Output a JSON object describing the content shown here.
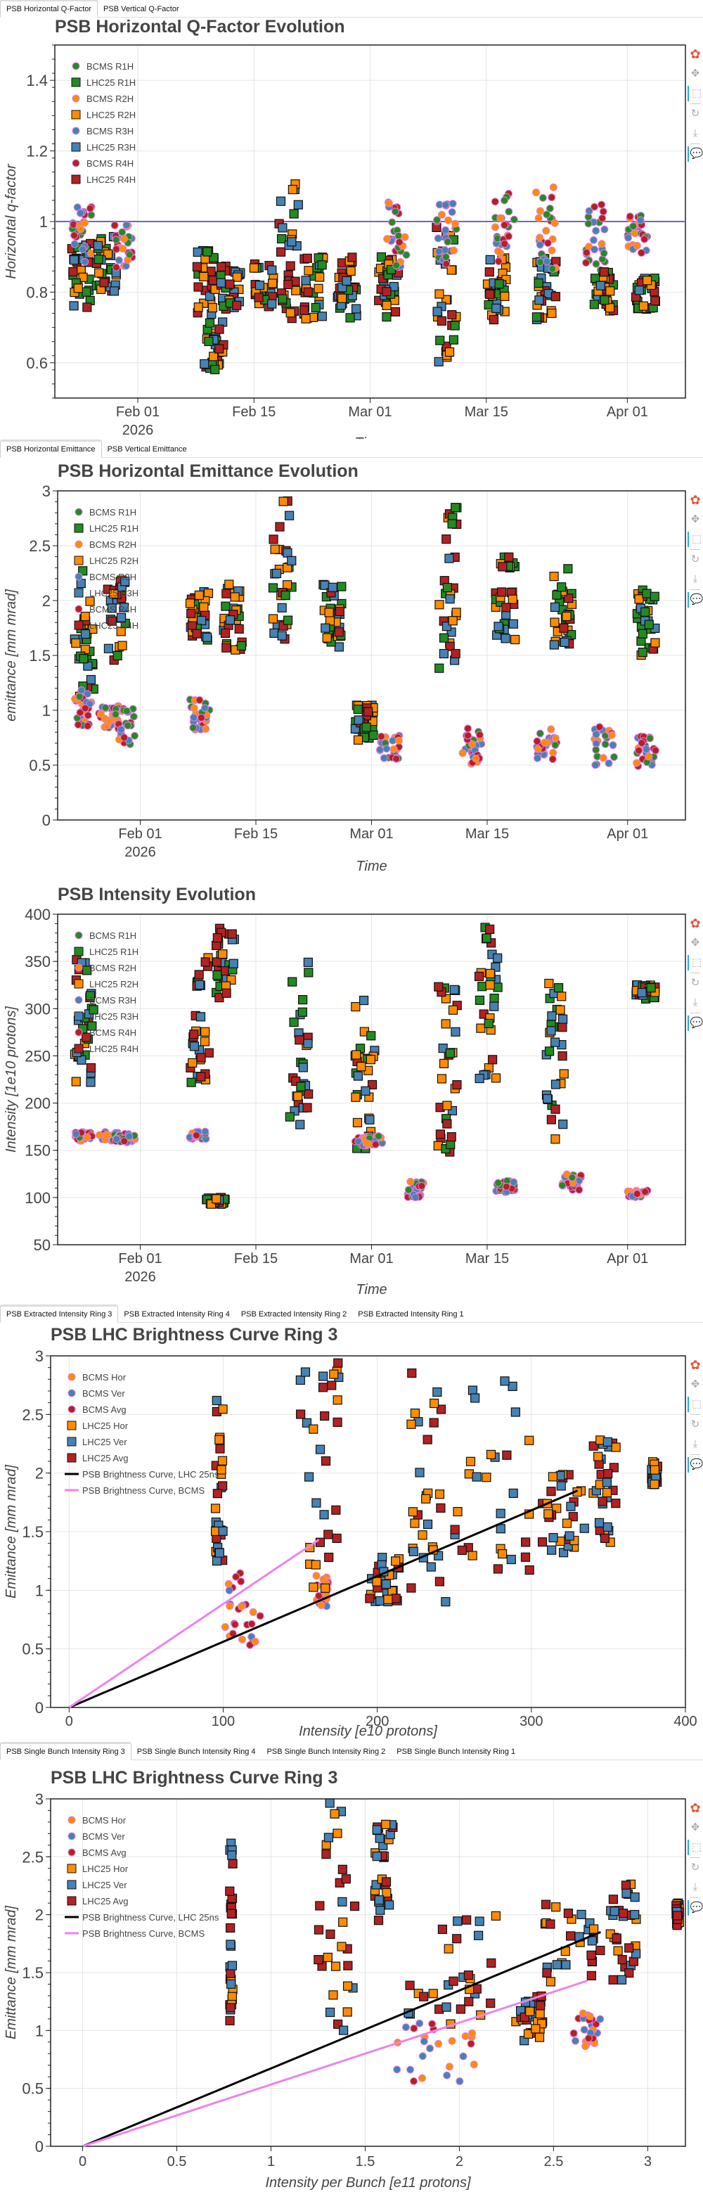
{
  "legend_time": [
    {
      "label": "BCMS R1H",
      "marker": "circle",
      "color": "#228b22"
    },
    {
      "label": "LHC25 R1H",
      "marker": "square",
      "color": "#228b22"
    },
    {
      "label": "BCMS R2H",
      "marker": "circle",
      "color": "#ff8c00"
    },
    {
      "label": "LHC25 R2H",
      "marker": "square",
      "color": "#ff8c00"
    },
    {
      "label": "BCMS R3H",
      "marker": "circle",
      "color": "#4682b4"
    },
    {
      "label": "LHC25 R3H",
      "marker": "square",
      "color": "#4682b4"
    },
    {
      "label": "BCMS R4H",
      "marker": "circle",
      "color": "#b22222"
    },
    {
      "label": "LHC25 R4H",
      "marker": "square",
      "color": "#b22222"
    }
  ],
  "legend_brightness": [
    {
      "label": "BCMS Hor",
      "marker": "circle",
      "color": "#ff8c00"
    },
    {
      "label": "BCMS Ver",
      "marker": "circle",
      "color": "#4682b4"
    },
    {
      "label": "BCMS Avg",
      "marker": "circle",
      "color": "#b22222"
    },
    {
      "label": "LHC25 Hor",
      "marker": "square",
      "color": "#ff8c00"
    },
    {
      "label": "LHC25 Ver",
      "marker": "square",
      "color": "#4682b4"
    },
    {
      "label": "LHC25 Avg",
      "marker": "square",
      "color": "#b22222"
    },
    {
      "label": "PSB Brightness Curve, LHC 25ns",
      "marker": "line",
      "color": "#000000"
    },
    {
      "label": "PSB Brightness Curve, BCMS",
      "marker": "line",
      "color": "#ee82ee"
    }
  ],
  "toolbar": [
    "bokeh-logo-icon",
    "pan-icon",
    "box-zoom-icon",
    "reset-icon",
    "save-icon",
    "hover-icon"
  ],
  "tabsets": [
    {
      "tabs": [
        "PSB Horizontal Q-Factor",
        "PSB Vertical Q-Factor"
      ],
      "active": 0
    },
    {
      "tabs": [
        "PSB Horizontal Emittance",
        "PSB Vertical Emittance"
      ],
      "active": 0
    },
    {
      "tabs": [
        "PSB Extracted Intensity Ring 3",
        "PSB Extracted Intensity Ring 4",
        "PSB Extracted Intensity Ring 2",
        "PSB Extracted Intensity Ring 1"
      ],
      "active": 0
    },
    {
      "tabs": [
        "PSB Single Bunch Intensity Ring 3",
        "PSB Single Bunch Intensity Ring 4",
        "PSB Single Bunch Intensity Ring 2",
        "PSB Single Bunch Intensity Ring 1"
      ],
      "active": 0
    }
  ],
  "chart_data": [
    {
      "type": "scatter",
      "title": "PSB Horizontal Q-Factor Evolution",
      "xlabel": "Time",
      "ylabel": "Horizontal q-factor",
      "x_type": "datetime",
      "xlim": [
        "2026-01-22",
        "2026-04-08"
      ],
      "x_ticks": [
        "Feb 01",
        "Feb 15",
        "Mar 01",
        "Mar 15",
        "Apr 01"
      ],
      "x_tick_sub": "2026",
      "ylim": [
        0.5,
        1.5
      ],
      "y_ticks": [
        0.6,
        0.8,
        1,
        1.2,
        1.4
      ],
      "reference_line": {
        "y": 1.0,
        "color": "#6a6ab0"
      },
      "legend": "top-left",
      "grid": true,
      "clusters": [
        {
          "series": "LHC25",
          "date": "2026-01-25",
          "y_range": [
            0.75,
            0.95
          ]
        },
        {
          "series": "BCMS",
          "date": "2026-01-25",
          "y_range": [
            0.88,
            1.05
          ]
        },
        {
          "series": "LHC25",
          "date": "2026-01-28",
          "y_range": [
            0.8,
            0.96
          ]
        },
        {
          "series": "BCMS",
          "date": "2026-01-30",
          "y_range": [
            0.87,
            1.0
          ]
        },
        {
          "series": "LHC25",
          "date": "2026-02-09",
          "y_range": [
            0.73,
            0.92
          ]
        },
        {
          "series": "LHC25",
          "date": "2026-02-10",
          "y_range": [
            0.58,
            0.72
          ]
        },
        {
          "series": "LHC25",
          "date": "2026-02-12",
          "y_range": [
            0.75,
            0.88
          ]
        },
        {
          "series": "LHC25",
          "date": "2026-02-16",
          "y_range": [
            0.75,
            0.88
          ]
        },
        {
          "series": "LHC25",
          "date": "2026-02-19",
          "y_range": [
            0.7,
            1.14
          ]
        },
        {
          "series": "LHC25",
          "date": "2026-02-22",
          "y_range": [
            0.72,
            0.9
          ]
        },
        {
          "series": "LHC25",
          "date": "2026-02-26",
          "y_range": [
            0.72,
            0.9
          ]
        },
        {
          "series": "LHC25",
          "date": "2026-03-03",
          "y_range": [
            0.72,
            0.9
          ]
        },
        {
          "series": "BCMS",
          "date": "2026-03-04",
          "y_range": [
            0.85,
            1.06
          ]
        },
        {
          "series": "LHC25",
          "date": "2026-03-10",
          "y_range": [
            0.58,
            1.0
          ]
        },
        {
          "series": "BCMS",
          "date": "2026-03-10",
          "y_range": [
            0.88,
            1.06
          ]
        },
        {
          "series": "LHC25",
          "date": "2026-03-16",
          "y_range": [
            0.72,
            0.9
          ]
        },
        {
          "series": "BCMS",
          "date": "2026-03-17",
          "y_range": [
            0.88,
            1.08
          ]
        },
        {
          "series": "LHC25",
          "date": "2026-03-22",
          "y_range": [
            0.72,
            0.92
          ]
        },
        {
          "series": "BCMS",
          "date": "2026-03-22",
          "y_range": [
            0.86,
            1.1
          ]
        },
        {
          "series": "BCMS",
          "date": "2026-03-28",
          "y_range": [
            0.86,
            1.06
          ]
        },
        {
          "series": "LHC25",
          "date": "2026-03-29",
          "y_range": [
            0.74,
            0.86
          ]
        },
        {
          "series": "BCMS",
          "date": "2026-04-02",
          "y_range": [
            0.9,
            1.02
          ]
        },
        {
          "series": "LHC25",
          "date": "2026-04-03",
          "y_range": [
            0.75,
            0.84
          ]
        }
      ]
    },
    {
      "type": "scatter",
      "title": "PSB Horizontal Emittance Evolution",
      "xlabel": "Time",
      "ylabel": "emittance [mm mrad]",
      "x_type": "datetime",
      "xlim": [
        "2026-01-22",
        "2026-04-08"
      ],
      "x_ticks": [
        "Feb 01",
        "Feb 15",
        "Mar 01",
        "Mar 15",
        "Apr 01"
      ],
      "x_tick_sub": "2026",
      "ylim": [
        0,
        3
      ],
      "y_ticks": [
        0,
        0.5,
        1,
        1.5,
        2,
        2.5,
        3
      ],
      "legend": "top-left",
      "grid": true,
      "clusters": [
        {
          "series": "LHC25",
          "date": "2026-01-25",
          "y_range": [
            1.05,
            2.3
          ]
        },
        {
          "series": "BCMS",
          "date": "2026-01-25",
          "y_range": [
            0.85,
            1.2
          ]
        },
        {
          "series": "LHC25",
          "date": "2026-01-29",
          "y_range": [
            1.45,
            2.2
          ]
        },
        {
          "series": "BCMS",
          "date": "2026-01-28",
          "y_range": [
            0.83,
            1.05
          ]
        },
        {
          "series": "BCMS",
          "date": "2026-01-30",
          "y_range": [
            0.68,
            1.05
          ]
        },
        {
          "series": "LHC25",
          "date": "2026-02-08",
          "y_range": [
            1.6,
            2.1
          ]
        },
        {
          "series": "BCMS",
          "date": "2026-02-08",
          "y_range": [
            0.82,
            1.1
          ]
        },
        {
          "series": "LHC25",
          "date": "2026-02-12",
          "y_range": [
            1.5,
            2.15
          ]
        },
        {
          "series": "LHC25",
          "date": "2026-02-18",
          "y_range": [
            1.55,
            2.95
          ]
        },
        {
          "series": "LHC25",
          "date": "2026-02-24",
          "y_range": [
            1.55,
            2.2
          ]
        },
        {
          "series": "LHC25",
          "date": "2026-02-28",
          "y_range": [
            0.72,
            1.05
          ]
        },
        {
          "series": "BCMS",
          "date": "2026-03-03",
          "y_range": [
            0.55,
            0.78
          ]
        },
        {
          "series": "LHC25",
          "date": "2026-03-10",
          "y_range": [
            1.2,
            3.0
          ]
        },
        {
          "series": "BCMS",
          "date": "2026-03-13",
          "y_range": [
            0.5,
            0.85
          ]
        },
        {
          "series": "LHC25",
          "date": "2026-03-17",
          "y_range": [
            1.6,
            2.4
          ]
        },
        {
          "series": "BCMS",
          "date": "2026-03-22",
          "y_range": [
            0.55,
            0.85
          ]
        },
        {
          "series": "LHC25",
          "date": "2026-03-24",
          "y_range": [
            1.55,
            2.3
          ]
        },
        {
          "series": "BCMS",
          "date": "2026-03-29",
          "y_range": [
            0.5,
            0.85
          ]
        },
        {
          "series": "LHC25",
          "date": "2026-04-03",
          "y_range": [
            1.5,
            2.1
          ]
        },
        {
          "series": "BCMS",
          "date": "2026-04-03",
          "y_range": [
            0.47,
            0.78
          ]
        }
      ]
    },
    {
      "type": "scatter",
      "title": "PSB Intensity Evolution",
      "xlabel": "Time",
      "ylabel": "Intensity [1e10 protons]",
      "x_type": "datetime",
      "xlim": [
        "2026-01-22",
        "2026-04-08"
      ],
      "x_ticks": [
        "Feb 01",
        "Feb 15",
        "Mar 01",
        "Mar 15",
        "Apr 01"
      ],
      "x_tick_sub": "2026",
      "ylim": [
        50,
        400
      ],
      "y_ticks": [
        50,
        100,
        150,
        200,
        250,
        300,
        350,
        400
      ],
      "legend": "top-left",
      "grid": true,
      "clusters": [
        {
          "series": "LHC25",
          "date": "2026-01-25",
          "y_range": [
            220,
            355
          ]
        },
        {
          "series": "BCMS",
          "date": "2026-01-25",
          "y_range": [
            160,
            170
          ]
        },
        {
          "series": "BCMS",
          "date": "2026-01-28",
          "y_range": [
            160,
            170
          ]
        },
        {
          "series": "BCMS",
          "date": "2026-01-30",
          "y_range": [
            158,
            168
          ]
        },
        {
          "series": "LHC25",
          "date": "2026-02-08",
          "y_range": [
            215,
            355
          ]
        },
        {
          "series": "BCMS",
          "date": "2026-02-08",
          "y_range": [
            162,
            170
          ]
        },
        {
          "series": "LHC25",
          "date": "2026-02-10",
          "y_range": [
            92,
            100
          ]
        },
        {
          "series": "LHC25",
          "date": "2026-02-11",
          "y_range": [
            310,
            385
          ]
        },
        {
          "series": "LHC25",
          "date": "2026-02-20",
          "y_range": [
            170,
            350
          ]
        },
        {
          "series": "LHC25",
          "date": "2026-02-28",
          "y_range": [
            150,
            325
          ]
        },
        {
          "series": "BCMS",
          "date": "2026-02-28",
          "y_range": [
            155,
            165
          ]
        },
        {
          "series": "BCMS",
          "date": "2026-03-01",
          "y_range": [
            155,
            165
          ]
        },
        {
          "series": "LHC25",
          "date": "2026-03-10",
          "y_range": [
            140,
            325
          ]
        },
        {
          "series": "BCMS",
          "date": "2026-03-06",
          "y_range": [
            100,
            118
          ]
        },
        {
          "series": "LHC25",
          "date": "2026-03-15",
          "y_range": [
            225,
            390
          ]
        },
        {
          "series": "BCMS",
          "date": "2026-03-17",
          "y_range": [
            105,
            118
          ]
        },
        {
          "series": "LHC25",
          "date": "2026-03-23",
          "y_range": [
            150,
            330
          ]
        },
        {
          "series": "BCMS",
          "date": "2026-03-25",
          "y_range": [
            108,
            126
          ]
        },
        {
          "series": "LHC25",
          "date": "2026-04-03",
          "y_range": [
            310,
            325
          ]
        },
        {
          "series": "BCMS",
          "date": "2026-04-02",
          "y_range": [
            100,
            108
          ]
        }
      ]
    },
    {
      "type": "scatter",
      "title": "PSB LHC Brightness Curve Ring 3",
      "xlabel": "Intensity [e10 protons]",
      "ylabel": "Emittance [mm mrad]",
      "xlim": [
        -12,
        400
      ],
      "x_ticks": [
        0,
        100,
        200,
        300,
        400
      ],
      "ylim": [
        0,
        3
      ],
      "y_ticks": [
        0,
        0.5,
        1,
        1.5,
        2,
        2.5,
        3
      ],
      "legend": "top-left",
      "grid": true,
      "lines": [
        {
          "name": "PSB Brightness Curve, LHC 25ns",
          "color": "#000000",
          "x": [
            0,
            330
          ],
          "y": [
            0,
            1.85
          ]
        },
        {
          "name": "PSB Brightness Curve, BCMS",
          "color": "#ee82ee",
          "x": [
            0,
            162
          ],
          "y": [
            0,
            1.43
          ]
        }
      ],
      "clusters": [
        {
          "series": "BCMS",
          "x_range": [
            100,
            125
          ],
          "y_range": [
            0.5,
            1.15
          ]
        },
        {
          "series": "BCMS",
          "x_range": [
            160,
            168
          ],
          "y_range": [
            0.85,
            1.15
          ]
        },
        {
          "series": "LHC25",
          "x_range": [
            95,
            100
          ],
          "y_range": [
            1.05,
            2.65
          ]
        },
        {
          "series": "LHC25",
          "x_range": [
            150,
            175
          ],
          "y_range": [
            1.0,
            3.0
          ]
        },
        {
          "series": "LHC25",
          "x_range": [
            195,
            215
          ],
          "y_range": [
            0.9,
            1.3
          ]
        },
        {
          "series": "LHC25",
          "x_range": [
            220,
            245
          ],
          "y_range": [
            0.9,
            2.9
          ]
        },
        {
          "series": "LHC25",
          "x_range": [
            250,
            300
          ],
          "y_range": [
            1.0,
            2.8
          ]
        },
        {
          "series": "LHC25",
          "x_range": [
            305,
            335
          ],
          "y_range": [
            1.3,
            2.1
          ]
        },
        {
          "series": "LHC25",
          "x_range": [
            340,
            355
          ],
          "y_range": [
            1.4,
            2.3
          ]
        },
        {
          "series": "LHC25",
          "x_range": [
            378,
            382
          ],
          "y_range": [
            1.9,
            2.1
          ]
        }
      ]
    },
    {
      "type": "scatter",
      "title": "PSB LHC Brightness Curve Ring 3",
      "xlabel": "Intensity per Bunch [e11 protons]",
      "ylabel": "Emittance [mm mrad]",
      "xlim": [
        -0.17,
        3.2
      ],
      "x_ticks": [
        0,
        0.5,
        1,
        1.5,
        2,
        2.5,
        3
      ],
      "ylim": [
        0,
        3
      ],
      "y_ticks": [
        0,
        0.5,
        1,
        1.5,
        2,
        2.5,
        3
      ],
      "legend": "top-left",
      "grid": true,
      "lines": [
        {
          "name": "PSB Brightness Curve, LHC 25ns",
          "color": "#000000",
          "x": [
            0,
            2.75
          ],
          "y": [
            0,
            1.85
          ]
        },
        {
          "name": "PSB Brightness Curve, BCMS",
          "color": "#ee82ee",
          "x": [
            0,
            2.68
          ],
          "y": [
            0,
            1.43
          ]
        }
      ],
      "clusters": [
        {
          "series": "BCMS",
          "x_range": [
            1.65,
            2.1
          ],
          "y_range": [
            0.5,
            1.1
          ]
        },
        {
          "series": "BCMS",
          "x_range": [
            2.6,
            2.75
          ],
          "y_range": [
            0.85,
            1.15
          ]
        },
        {
          "series": "LHC25",
          "x_range": [
            0.78,
            0.8
          ],
          "y_range": [
            1.05,
            2.65
          ]
        },
        {
          "series": "LHC25",
          "x_range": [
            1.25,
            1.45
          ],
          "y_range": [
            1.0,
            3.0
          ]
        },
        {
          "series": "LHC25",
          "x_range": [
            1.55,
            1.65
          ],
          "y_range": [
            1.95,
            2.8
          ]
        },
        {
          "series": "LHC25",
          "x_range": [
            1.7,
            2.2
          ],
          "y_range": [
            1.05,
            2.0
          ]
        },
        {
          "series": "LHC25",
          "x_range": [
            2.3,
            2.45
          ],
          "y_range": [
            0.9,
            1.3
          ]
        },
        {
          "series": "LHC25",
          "x_range": [
            2.45,
            2.75
          ],
          "y_range": [
            1.35,
            2.1
          ]
        },
        {
          "series": "LHC25",
          "x_range": [
            2.8,
            2.95
          ],
          "y_range": [
            1.4,
            2.3
          ]
        },
        {
          "series": "LHC25",
          "x_range": [
            3.15,
            3.17
          ],
          "y_range": [
            1.9,
            2.1
          ]
        }
      ]
    }
  ]
}
